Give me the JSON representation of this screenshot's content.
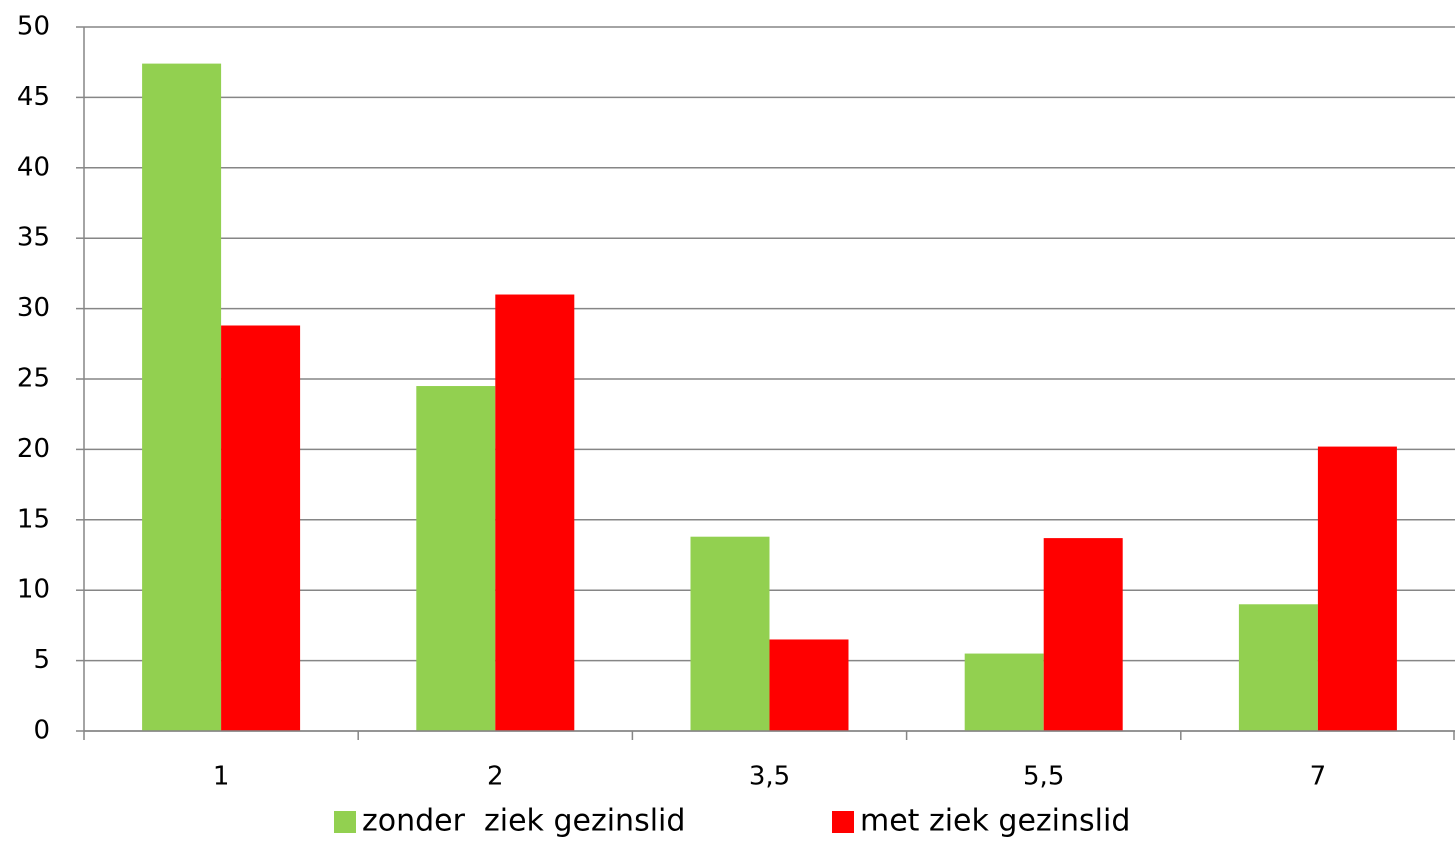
{
  "chart_data": {
    "type": "bar",
    "categories": [
      "1",
      "2",
      "3,5",
      "5,5",
      "7"
    ],
    "series": [
      {
        "name": "zonder  ziek gezinslid",
        "color": "#92d050",
        "values": [
          47.4,
          24.5,
          13.8,
          5.5,
          9.0
        ]
      },
      {
        "name": "met ziek gezinslid",
        "color": "#ff0000",
        "values": [
          28.8,
          31.0,
          6.5,
          13.7,
          20.2
        ]
      }
    ],
    "ylim": [
      0,
      50
    ],
    "yticks": [
      0,
      5,
      10,
      15,
      20,
      25,
      30,
      35,
      40,
      45,
      50
    ],
    "grid": true,
    "legend": "bottom"
  }
}
